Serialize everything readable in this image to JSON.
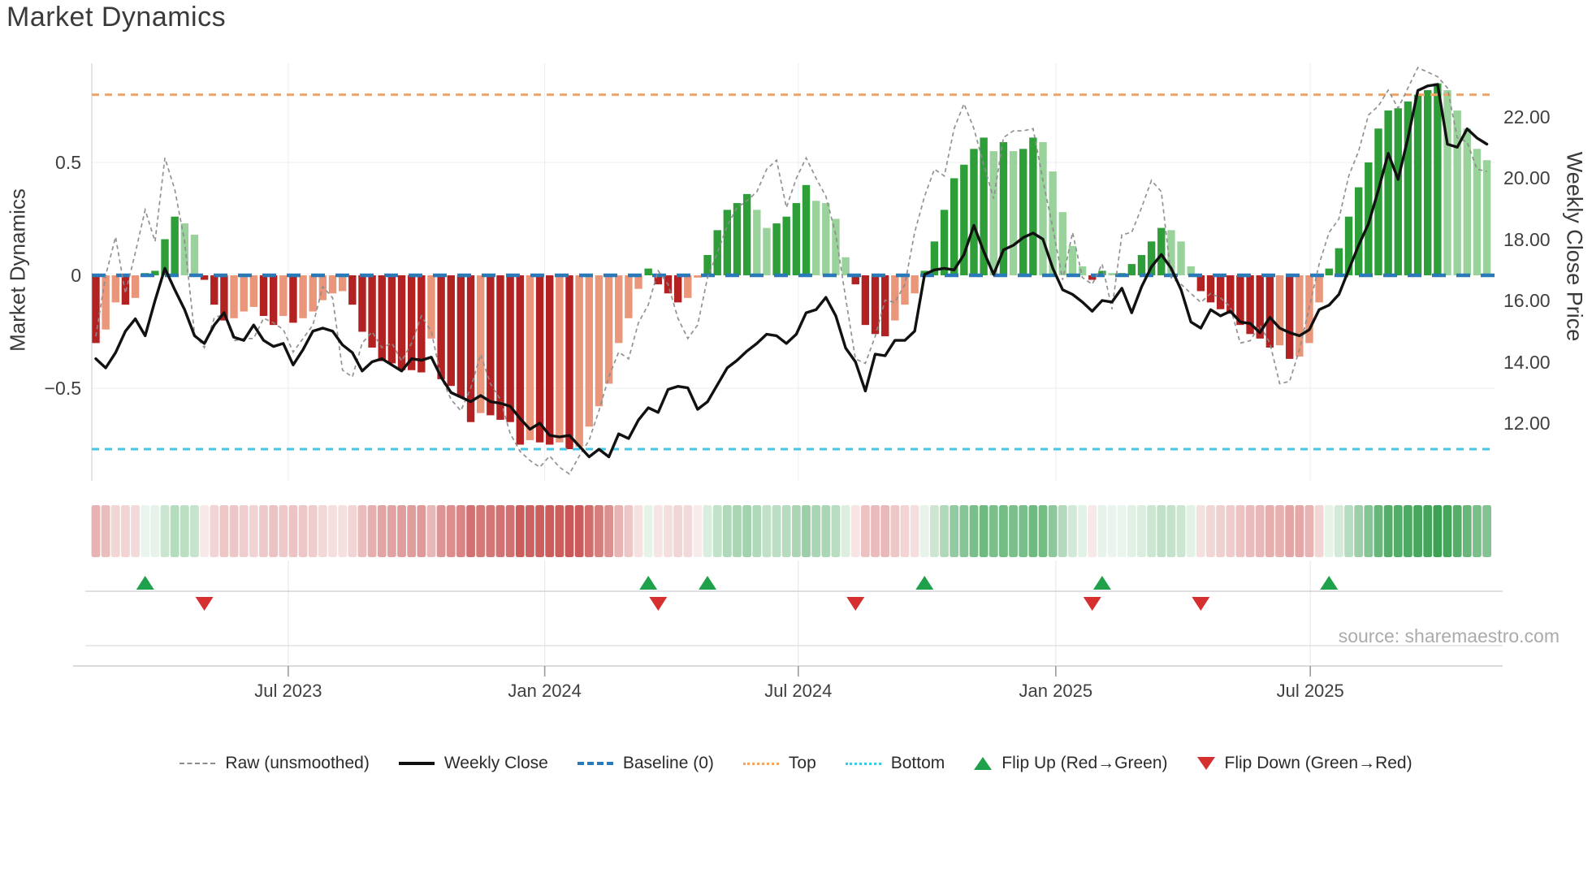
{
  "chart_data": {
    "type": "bar",
    "title": "Market Dynamics",
    "source": "source: sharemaestro.com",
    "x_axis": {
      "tick_labels": [
        "Jul 2023",
        "Jan 2024",
        "Jul 2024",
        "Jan 2025",
        "Jul 2025"
      ],
      "tick_week_index": [
        19.5,
        45.5,
        71.2,
        97.3,
        123.1
      ]
    },
    "left_axis": {
      "label": "Market Dynamics",
      "ticks": [
        0.5,
        0,
        -0.5
      ],
      "tick_labels": [
        "0.5",
        "0",
        "−0.5"
      ],
      "range": [
        -0.95,
        0.95
      ]
    },
    "right_axis": {
      "label": "Weekly Close Price",
      "ticks": [
        22,
        20,
        18,
        16,
        14,
        12
      ],
      "tick_labels": [
        "22.00",
        "20.00",
        "18.00",
        "16.00",
        "14.00",
        "12.00"
      ],
      "range": [
        10.5,
        23.6
      ]
    },
    "bands": {
      "top": 0.8,
      "baseline": 0,
      "bottom": -0.77
    },
    "weeks": 142,
    "series": {
      "oscillator_bars": [
        -0.3,
        -0.24,
        -0.12,
        -0.13,
        -0.1,
        0.01,
        0.02,
        0.16,
        0.26,
        0.23,
        0.18,
        -0.02,
        -0.13,
        -0.2,
        -0.19,
        -0.16,
        -0.14,
        -0.18,
        -0.22,
        -0.18,
        -0.21,
        -0.19,
        -0.16,
        -0.11,
        -0.08,
        -0.07,
        -0.13,
        -0.25,
        -0.32,
        -0.38,
        -0.39,
        -0.42,
        -0.42,
        -0.43,
        -0.28,
        -0.46,
        -0.49,
        -0.54,
        -0.65,
        -0.61,
        -0.62,
        -0.64,
        -0.65,
        -0.75,
        -0.73,
        -0.74,
        -0.75,
        -0.74,
        -0.77,
        -0.76,
        -0.67,
        -0.58,
        -0.48,
        -0.3,
        -0.19,
        -0.06,
        0.03,
        -0.04,
        -0.08,
        -0.12,
        -0.1,
        -0.01,
        0.09,
        0.2,
        0.29,
        0.32,
        0.36,
        0.29,
        0.21,
        0.23,
        0.26,
        0.32,
        0.4,
        0.33,
        0.32,
        0.25,
        0.08,
        -0.04,
        -0.22,
        -0.26,
        -0.27,
        -0.2,
        -0.13,
        -0.08,
        0.02,
        0.15,
        0.29,
        0.43,
        0.49,
        0.56,
        0.61,
        0.55,
        0.59,
        0.55,
        0.56,
        0.61,
        0.59,
        0.46,
        0.28,
        0.13,
        0.04,
        -0.02,
        0.02,
        0.01,
        0.01,
        0.05,
        0.09,
        0.15,
        0.21,
        0.2,
        0.15,
        0.04,
        -0.07,
        -0.12,
        -0.15,
        -0.17,
        -0.22,
        -0.26,
        -0.28,
        -0.32,
        -0.31,
        -0.37,
        -0.36,
        -0.3,
        -0.12,
        0.03,
        0.12,
        0.26,
        0.39,
        0.5,
        0.65,
        0.73,
        0.74,
        0.77,
        0.8,
        0.82,
        0.85,
        0.82,
        0.73,
        0.65,
        0.56,
        0.51
      ],
      "raw_unsmoothed": [
        -0.27,
        0.0,
        0.17,
        -0.08,
        0.1,
        0.29,
        0.15,
        0.52,
        0.38,
        0.15,
        -0.26,
        -0.32,
        -0.19,
        -0.17,
        -0.29,
        -0.28,
        -0.28,
        -0.19,
        -0.21,
        -0.24,
        -0.34,
        -0.28,
        -0.22,
        -0.05,
        -0.1,
        -0.42,
        -0.45,
        -0.3,
        -0.25,
        -0.32,
        -0.3,
        -0.38,
        -0.3,
        -0.18,
        -0.25,
        -0.45,
        -0.55,
        -0.6,
        -0.5,
        -0.35,
        -0.48,
        -0.55,
        -0.7,
        -0.78,
        -0.82,
        -0.85,
        -0.8,
        -0.85,
        -0.88,
        -0.8,
        -0.73,
        -0.6,
        -0.45,
        -0.34,
        -0.37,
        -0.21,
        -0.13,
        0.02,
        -0.04,
        -0.19,
        -0.28,
        -0.22,
        -0.01,
        0.1,
        0.22,
        0.3,
        0.33,
        0.37,
        0.47,
        0.51,
        0.3,
        0.43,
        0.52,
        0.43,
        0.35,
        0.18,
        -0.1,
        -0.37,
        -0.39,
        -0.27,
        -0.11,
        -0.12,
        -0.04,
        0.19,
        0.35,
        0.47,
        0.44,
        0.65,
        0.76,
        0.65,
        0.49,
        0.34,
        0.61,
        0.64,
        0.64,
        0.65,
        0.42,
        0.21,
        -0.02,
        0.19,
        -0.01,
        -0.04,
        0.05,
        -0.15,
        0.18,
        0.19,
        0.3,
        0.42,
        0.37,
        -0.01,
        -0.04,
        -0.08,
        -0.12,
        -0.08,
        -0.1,
        -0.14,
        -0.3,
        -0.29,
        -0.22,
        -0.3,
        -0.48,
        -0.47,
        -0.33,
        -0.14,
        0.05,
        0.19,
        0.25,
        0.44,
        0.55,
        0.71,
        0.75,
        0.82,
        0.74,
        0.83,
        0.92,
        0.9,
        0.88,
        0.83,
        0.61,
        0.59,
        0.47,
        0.46
      ],
      "weekly_close": [
        14.1,
        13.8,
        14.3,
        15.0,
        15.4,
        14.85,
        16.0,
        17.05,
        16.35,
        15.7,
        14.85,
        14.6,
        15.2,
        15.6,
        14.8,
        14.7,
        15.2,
        14.7,
        14.5,
        14.6,
        13.9,
        14.4,
        15.0,
        15.1,
        15.0,
        14.55,
        14.3,
        13.7,
        14.0,
        14.1,
        13.9,
        13.7,
        14.1,
        14.05,
        14.15,
        13.5,
        13.0,
        12.85,
        12.7,
        12.9,
        12.7,
        12.65,
        12.55,
        12.15,
        11.8,
        12.0,
        11.6,
        11.55,
        11.6,
        11.25,
        10.9,
        11.15,
        10.9,
        11.65,
        11.5,
        12.1,
        12.5,
        12.35,
        13.1,
        13.2,
        13.15,
        12.45,
        12.7,
        13.25,
        13.8,
        14.05,
        14.35,
        14.6,
        14.9,
        14.85,
        14.6,
        14.9,
        15.6,
        15.7,
        16.1,
        15.5,
        14.45,
        14.0,
        13.05,
        14.25,
        14.2,
        14.7,
        14.7,
        15.0,
        16.85,
        17.0,
        17.05,
        17.0,
        17.5,
        18.45,
        17.6,
        16.85,
        17.65,
        17.8,
        18.05,
        18.2,
        18.0,
        17.05,
        16.35,
        16.2,
        15.95,
        15.65,
        16.0,
        15.95,
        16.4,
        15.6,
        16.45,
        17.1,
        17.5,
        17.05,
        16.35,
        15.3,
        15.1,
        15.7,
        15.5,
        15.65,
        15.3,
        15.25,
        14.95,
        15.45,
        15.1,
        14.95,
        14.85,
        15.05,
        15.7,
        15.85,
        16.2,
        17.0,
        17.8,
        18.5,
        19.6,
        20.8,
        19.95,
        21.3,
        22.85,
        23.0,
        23.05,
        21.1,
        21.0,
        21.6,
        21.3,
        21.1
      ]
    },
    "markers": {
      "flip_up_weeks": [
        5,
        56,
        62,
        84,
        102,
        125
      ],
      "flip_down_weeks": [
        11,
        57,
        77,
        101,
        112
      ]
    },
    "legend": {
      "items": [
        {
          "label": "Raw (unsmoothed)",
          "type": "dashed-gray-line"
        },
        {
          "label": "Weekly Close",
          "type": "solid-black-line"
        },
        {
          "label": "Baseline (0)",
          "type": "dashed-blue-line"
        },
        {
          "label": "Top",
          "type": "dotted-orange-line"
        },
        {
          "label": "Bottom",
          "type": "dotted-cyan-line"
        },
        {
          "label": "Flip Up (Red→Green)",
          "type": "green-up-triangle"
        },
        {
          "label": "Flip Down (Green→Red)",
          "type": "red-down-triangle"
        }
      ]
    },
    "colors": {
      "dark_red": "#b22222",
      "light_red": "#e9967a",
      "dark_green": "#2e9e38",
      "light_green": "#9ad29b",
      "baseline_blue": "#2a7ab9",
      "top_orange": "#f4a460",
      "bottom_cyan": "#3ec9e9",
      "raw_gray": "#8c8c8c",
      "close_black": "#111111",
      "flip_up_green": "#1fa04a",
      "flip_down_red": "#d62f2f",
      "heat_red_rgb": "197,70,70",
      "heat_green_rgb": "58,160,82"
    }
  }
}
